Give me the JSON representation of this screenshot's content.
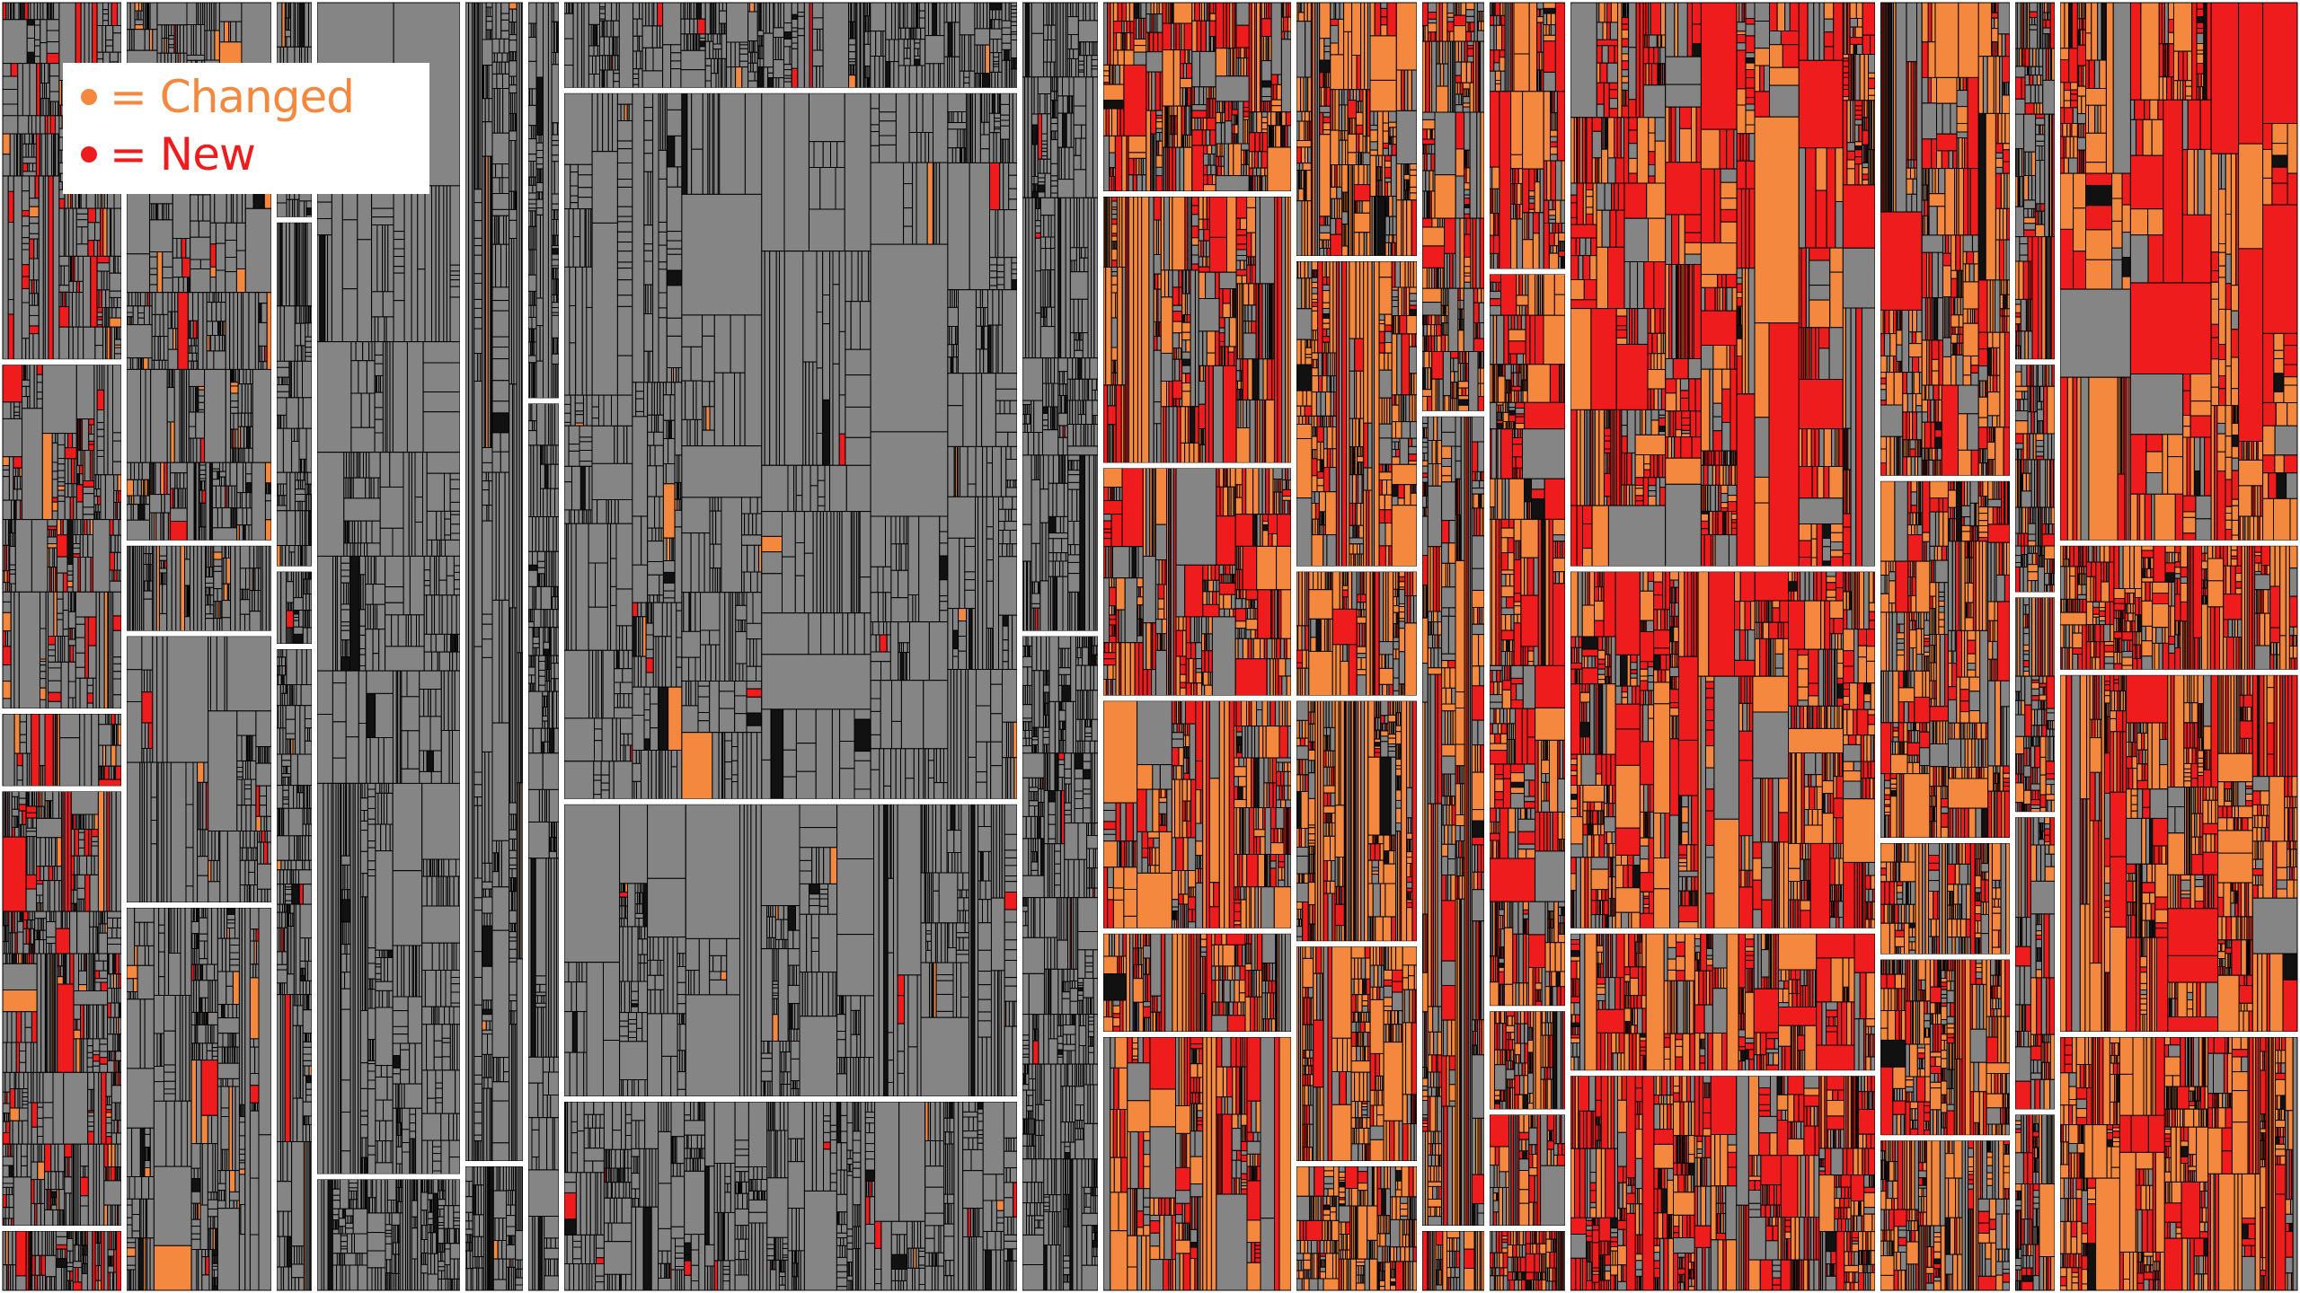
{
  "legend": {
    "items": [
      {
        "marker": "●",
        "label": "= Changed",
        "color": "#f5883f"
      },
      {
        "marker": "●",
        "label": "= New",
        "color": "#ee1c1c"
      }
    ]
  },
  "colors": {
    "unchanged": "#858585",
    "changed": "#f5883f",
    "new": "#ee1c1c",
    "border": "#000000",
    "divider": "#ffffff"
  },
  "columns": [
    {
      "name": "col-1",
      "mix": {
        "changed": 0.05,
        "new": 0.15
      }
    },
    {
      "name": "col-2",
      "mix": {
        "changed": 0.06,
        "new": 0.02
      }
    },
    {
      "name": "col-3",
      "mix": {
        "changed": 0.02,
        "new": 0.01
      }
    },
    {
      "name": "col-4",
      "mix": {
        "changed": 0.0,
        "new": 0.0
      }
    },
    {
      "name": "col-5",
      "mix": {
        "changed": 0.01,
        "new": 0.0
      }
    },
    {
      "name": "col-6",
      "mix": {
        "changed": 0.0,
        "new": 0.0
      }
    },
    {
      "name": "col-7",
      "mix": {
        "changed": 0.01,
        "new": 0.01
      }
    },
    {
      "name": "col-8",
      "mix": {
        "changed": 0.0,
        "new": 0.01
      }
    },
    {
      "name": "col-9",
      "mix": {
        "changed": 0.35,
        "new": 0.35
      }
    },
    {
      "name": "col-10",
      "mix": {
        "changed": 0.55,
        "new": 0.15
      }
    },
    {
      "name": "col-11",
      "mix": {
        "changed": 0.4,
        "new": 0.2
      }
    },
    {
      "name": "col-12",
      "mix": {
        "changed": 0.35,
        "new": 0.35
      }
    },
    {
      "name": "col-13",
      "mix": {
        "changed": 0.3,
        "new": 0.45
      }
    },
    {
      "name": "col-14",
      "mix": {
        "changed": 0.45,
        "new": 0.25
      }
    },
    {
      "name": "col-15",
      "mix": {
        "changed": 0.2,
        "new": 0.25
      }
    },
    {
      "name": "col-16",
      "mix": {
        "changed": 0.5,
        "new": 0.35
      }
    }
  ]
}
